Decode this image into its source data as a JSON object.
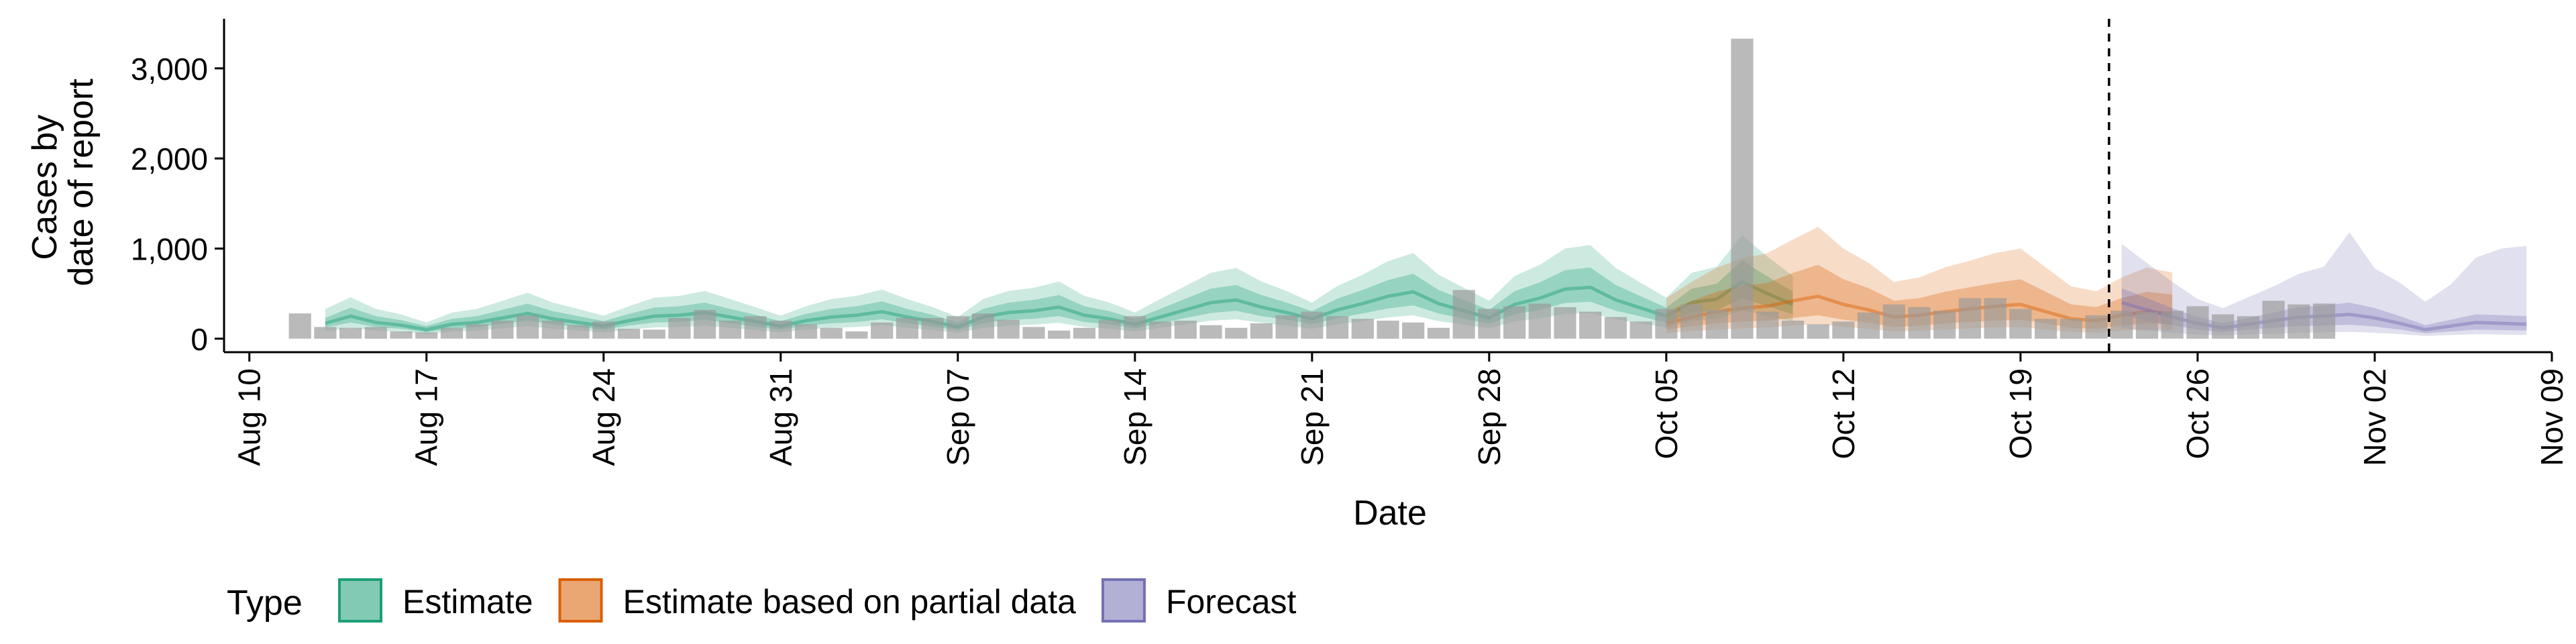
{
  "chart_data": {
    "type": "bar",
    "xlabel": "Date",
    "ylabel": [
      "Cases by",
      "date of report"
    ],
    "y_ticks": [
      0,
      1000,
      2000,
      3000
    ],
    "y_tick_labels": [
      "0",
      "1,000",
      "2,000",
      "3,000"
    ],
    "ylim": [
      -150,
      3550
    ],
    "x_range": [
      "2020-08-09",
      "2020-11-09"
    ],
    "x_ticks": [
      "2020-08-10",
      "2020-08-17",
      "2020-08-24",
      "2020-08-31",
      "2020-09-07",
      "2020-09-14",
      "2020-09-21",
      "2020-09-28",
      "2020-10-05",
      "2020-10-12",
      "2020-10-19",
      "2020-10-26",
      "2020-11-02",
      "2020-11-09"
    ],
    "x_tick_labels": [
      "Aug 10",
      "Aug 17",
      "Aug 24",
      "Aug 31",
      "Sep 07",
      "Sep 14",
      "Sep 21",
      "Sep 28",
      "Oct 05",
      "Oct 12",
      "Oct 19",
      "Oct 26",
      "Nov 02",
      "Nov 09"
    ],
    "forecast_cutoff": "2020-10-22",
    "observed": {
      "start": "2020-08-12",
      "values": [
        280,
        130,
        120,
        130,
        80,
        70,
        120,
        160,
        200,
        260,
        200,
        150,
        190,
        110,
        100,
        230,
        320,
        200,
        250,
        200,
        160,
        120,
        80,
        180,
        230,
        230,
        250,
        280,
        210,
        130,
        90,
        120,
        210,
        250,
        190,
        200,
        150,
        120,
        170,
        260,
        300,
        250,
        220,
        200,
        180,
        120,
        540,
        330,
        360,
        390,
        350,
        300,
        240,
        190,
        330,
        380,
        320,
        3330,
        300,
        200,
        160,
        190,
        290,
        380,
        350,
        310,
        450,
        450,
        330,
        220,
        220,
        260,
        310,
        300,
        310,
        360,
        270,
        250,
        420,
        380,
        390
      ]
    },
    "legend_title": "Type",
    "legend": [
      "Estimate",
      "Estimate based on partial data",
      "Forecast"
    ],
    "series": [
      {
        "name": "Estimate",
        "color": "#1B9E77",
        "start": "2020-08-13",
        "median": [
          170,
          250,
          180,
          150,
          100,
          160,
          180,
          230,
          280,
          220,
          180,
          140,
          200,
          250,
          260,
          290,
          240,
          190,
          140,
          200,
          240,
          260,
          300,
          240,
          190,
          130,
          240,
          290,
          310,
          350,
          260,
          220,
          160,
          240,
          320,
          400,
          430,
          350,
          290,
          220,
          320,
          390,
          470,
          520,
          390,
          310,
          230,
          380,
          450,
          550,
          570,
          430,
          340,
          250,
          400,
          440,
          630,
          500,
          380
        ],
        "q25_75": [
          [
            125,
            230
          ],
          [
            180,
            345
          ],
          [
            130,
            250
          ],
          [
            110,
            205
          ],
          [
            70,
            140
          ],
          [
            115,
            220
          ],
          [
            130,
            250
          ],
          [
            165,
            320
          ],
          [
            200,
            390
          ],
          [
            160,
            305
          ],
          [
            130,
            250
          ],
          [
            100,
            195
          ],
          [
            145,
            275
          ],
          [
            180,
            345
          ],
          [
            185,
            360
          ],
          [
            210,
            400
          ],
          [
            170,
            330
          ],
          [
            135,
            265
          ],
          [
            100,
            195
          ],
          [
            145,
            275
          ],
          [
            170,
            330
          ],
          [
            185,
            360
          ],
          [
            215,
            415
          ],
          [
            170,
            330
          ],
          [
            135,
            265
          ],
          [
            95,
            180
          ],
          [
            170,
            330
          ],
          [
            210,
            400
          ],
          [
            220,
            430
          ],
          [
            250,
            485
          ],
          [
            185,
            360
          ],
          [
            160,
            305
          ],
          [
            115,
            220
          ],
          [
            170,
            330
          ],
          [
            230,
            445
          ],
          [
            285,
            555
          ],
          [
            310,
            595
          ],
          [
            250,
            485
          ],
          [
            210,
            400
          ],
          [
            160,
            305
          ],
          [
            230,
            445
          ],
          [
            280,
            540
          ],
          [
            335,
            650
          ],
          [
            370,
            720
          ],
          [
            280,
            540
          ],
          [
            220,
            430
          ],
          [
            165,
            320
          ],
          [
            270,
            525
          ],
          [
            320,
            625
          ],
          [
            395,
            760
          ],
          [
            410,
            790
          ],
          [
            310,
            595
          ],
          [
            245,
            470
          ],
          [
            180,
            345
          ],
          [
            285,
            555
          ],
          [
            315,
            610
          ],
          [
            450,
            870
          ],
          [
            360,
            690
          ],
          [
            270,
            525
          ]
        ],
        "q05_95": [
          [
            80,
            330
          ],
          [
            120,
            460
          ],
          [
            90,
            330
          ],
          [
            75,
            270
          ],
          [
            50,
            180
          ],
          [
            80,
            290
          ],
          [
            90,
            330
          ],
          [
            115,
            420
          ],
          [
            140,
            510
          ],
          [
            110,
            400
          ],
          [
            90,
            330
          ],
          [
            70,
            255
          ],
          [
            100,
            360
          ],
          [
            125,
            455
          ],
          [
            130,
            475
          ],
          [
            145,
            530
          ],
          [
            120,
            440
          ],
          [
            95,
            350
          ],
          [
            70,
            255
          ],
          [
            100,
            360
          ],
          [
            120,
            440
          ],
          [
            130,
            475
          ],
          [
            150,
            545
          ],
          [
            120,
            440
          ],
          [
            95,
            350
          ],
          [
            65,
            240
          ],
          [
            120,
            440
          ],
          [
            145,
            530
          ],
          [
            155,
            565
          ],
          [
            175,
            635
          ],
          [
            130,
            475
          ],
          [
            110,
            400
          ],
          [
            80,
            290
          ],
          [
            120,
            440
          ],
          [
            160,
            585
          ],
          [
            200,
            730
          ],
          [
            215,
            785
          ],
          [
            175,
            635
          ],
          [
            145,
            530
          ],
          [
            110,
            400
          ],
          [
            160,
            585
          ],
          [
            195,
            710
          ],
          [
            235,
            860
          ],
          [
            260,
            950
          ],
          [
            195,
            710
          ],
          [
            155,
            565
          ],
          [
            115,
            420
          ],
          [
            190,
            695
          ],
          [
            225,
            820
          ],
          [
            275,
            1000
          ],
          [
            285,
            1040
          ],
          [
            215,
            785
          ],
          [
            170,
            620
          ],
          [
            125,
            455
          ],
          [
            200,
            730
          ],
          [
            220,
            800
          ],
          [
            315,
            1150
          ],
          [
            250,
            910
          ],
          [
            190,
            695
          ]
        ]
      },
      {
        "name": "Estimate based on partial data",
        "color": "#D95F02",
        "start": "2020-10-05",
        "median": [
          170,
          240,
          300,
          340,
          360,
          420,
          470,
          380,
          320,
          240,
          260,
          300,
          330,
          360,
          380,
          300,
          220,
          200,
          260,
          300,
          280
        ],
        "q25_75": [
          [
            100,
            300
          ],
          [
            140,
            420
          ],
          [
            170,
            520
          ],
          [
            190,
            590
          ],
          [
            200,
            620
          ],
          [
            230,
            730
          ],
          [
            260,
            820
          ],
          [
            210,
            660
          ],
          [
            180,
            560
          ],
          [
            130,
            420
          ],
          [
            145,
            450
          ],
          [
            170,
            520
          ],
          [
            185,
            570
          ],
          [
            200,
            620
          ],
          [
            210,
            660
          ],
          [
            170,
            520
          ],
          [
            120,
            380
          ],
          [
            110,
            350
          ],
          [
            145,
            450
          ],
          [
            170,
            520
          ],
          [
            155,
            490
          ]
        ],
        "q05_95": [
          [
            60,
            450
          ],
          [
            85,
            630
          ],
          [
            100,
            790
          ],
          [
            115,
            890
          ],
          [
            125,
            950
          ],
          [
            145,
            1100
          ],
          [
            160,
            1240
          ],
          [
            130,
            1000
          ],
          [
            110,
            840
          ],
          [
            80,
            630
          ],
          [
            90,
            680
          ],
          [
            100,
            790
          ],
          [
            115,
            865
          ],
          [
            125,
            950
          ],
          [
            130,
            1000
          ],
          [
            100,
            790
          ],
          [
            75,
            580
          ],
          [
            65,
            525
          ],
          [
            90,
            680
          ],
          [
            100,
            790
          ],
          [
            95,
            735
          ]
        ]
      },
      {
        "name": "Forecast",
        "color": "#7570B3",
        "start": "2020-10-23",
        "median": [
          400,
          320,
          240,
          170,
          120,
          160,
          200,
          240,
          250,
          270,
          230,
          170,
          100,
          140,
          180,
          170,
          160
        ],
        "q25_75": [
          [
            260,
            560
          ],
          [
            200,
            450
          ],
          [
            150,
            340
          ],
          [
            100,
            240
          ],
          [
            75,
            175
          ],
          [
            100,
            230
          ],
          [
            120,
            290
          ],
          [
            140,
            350
          ],
          [
            145,
            370
          ],
          [
            155,
            400
          ],
          [
            135,
            340
          ],
          [
            100,
            250
          ],
          [
            60,
            150
          ],
          [
            80,
            210
          ],
          [
            100,
            270
          ],
          [
            95,
            260
          ],
          [
            90,
            250
          ]
        ],
        "q05_95": [
          [
            120,
            1050
          ],
          [
            90,
            840
          ],
          [
            65,
            630
          ],
          [
            45,
            440
          ],
          [
            35,
            340
          ],
          [
            45,
            460
          ],
          [
            55,
            580
          ],
          [
            65,
            720
          ],
          [
            70,
            800
          ],
          [
            75,
            1180
          ],
          [
            65,
            780
          ],
          [
            50,
            620
          ],
          [
            30,
            410
          ],
          [
            40,
            600
          ],
          [
            50,
            900
          ],
          [
            45,
            1000
          ],
          [
            40,
            1030
          ]
        ]
      }
    ]
  }
}
